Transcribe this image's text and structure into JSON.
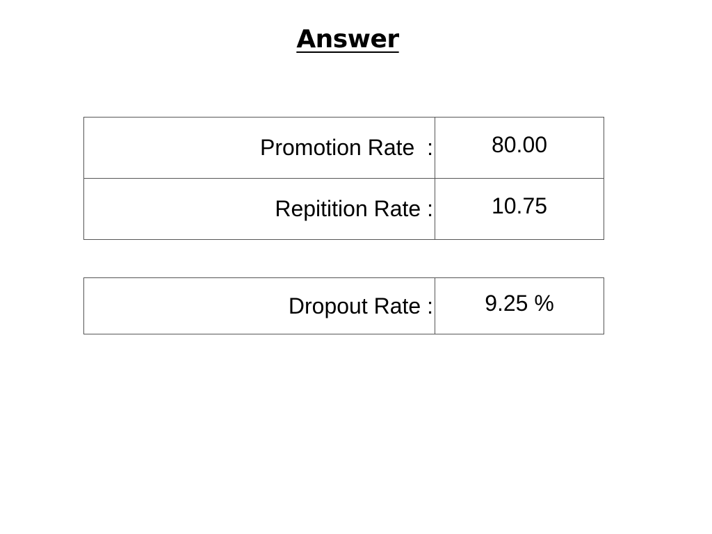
{
  "title": "Answer",
  "rates_table": {
    "rows": [
      {
        "label": "Promotion Rate  :",
        "value": "80.00"
      },
      {
        "label": "Repitition Rate :",
        "value": "10.75"
      }
    ]
  },
  "dropout_table": {
    "rows": [
      {
        "label": "Dropout Rate :",
        "value": "9.25 %"
      }
    ]
  }
}
